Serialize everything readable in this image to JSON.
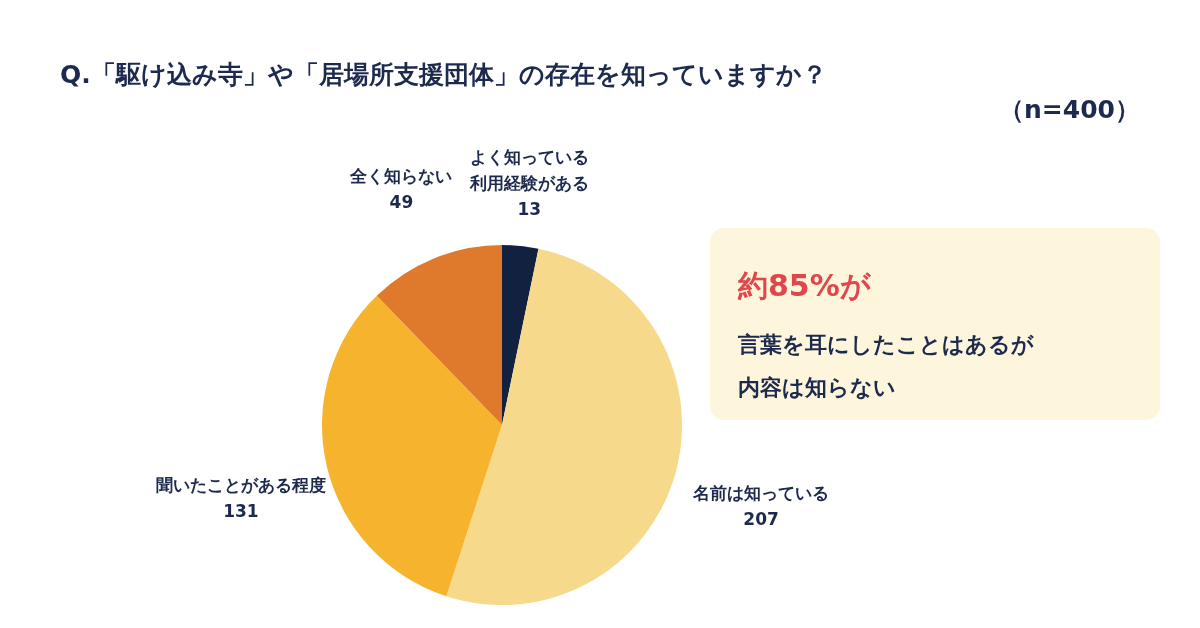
{
  "chart_data": {
    "type": "pie",
    "title": "Q.「駆け込み寺」や「居場所支援団体」の存在を知っていますか？",
    "subtitle": "（n=400）",
    "categories": [
      "よく知っている利用経験がある",
      "名前は知っている",
      "聞いたことがある程度",
      "全く知らない"
    ],
    "values": [
      13,
      207,
      131,
      49
    ],
    "colors": [
      "#12213f",
      "#f7d98c",
      "#f6b42e",
      "#df7a2c"
    ],
    "data_labels": true,
    "annotations": [
      "約85%が",
      "言葉を耳にしたことはあるが",
      "内容は知らない"
    ]
  }
}
